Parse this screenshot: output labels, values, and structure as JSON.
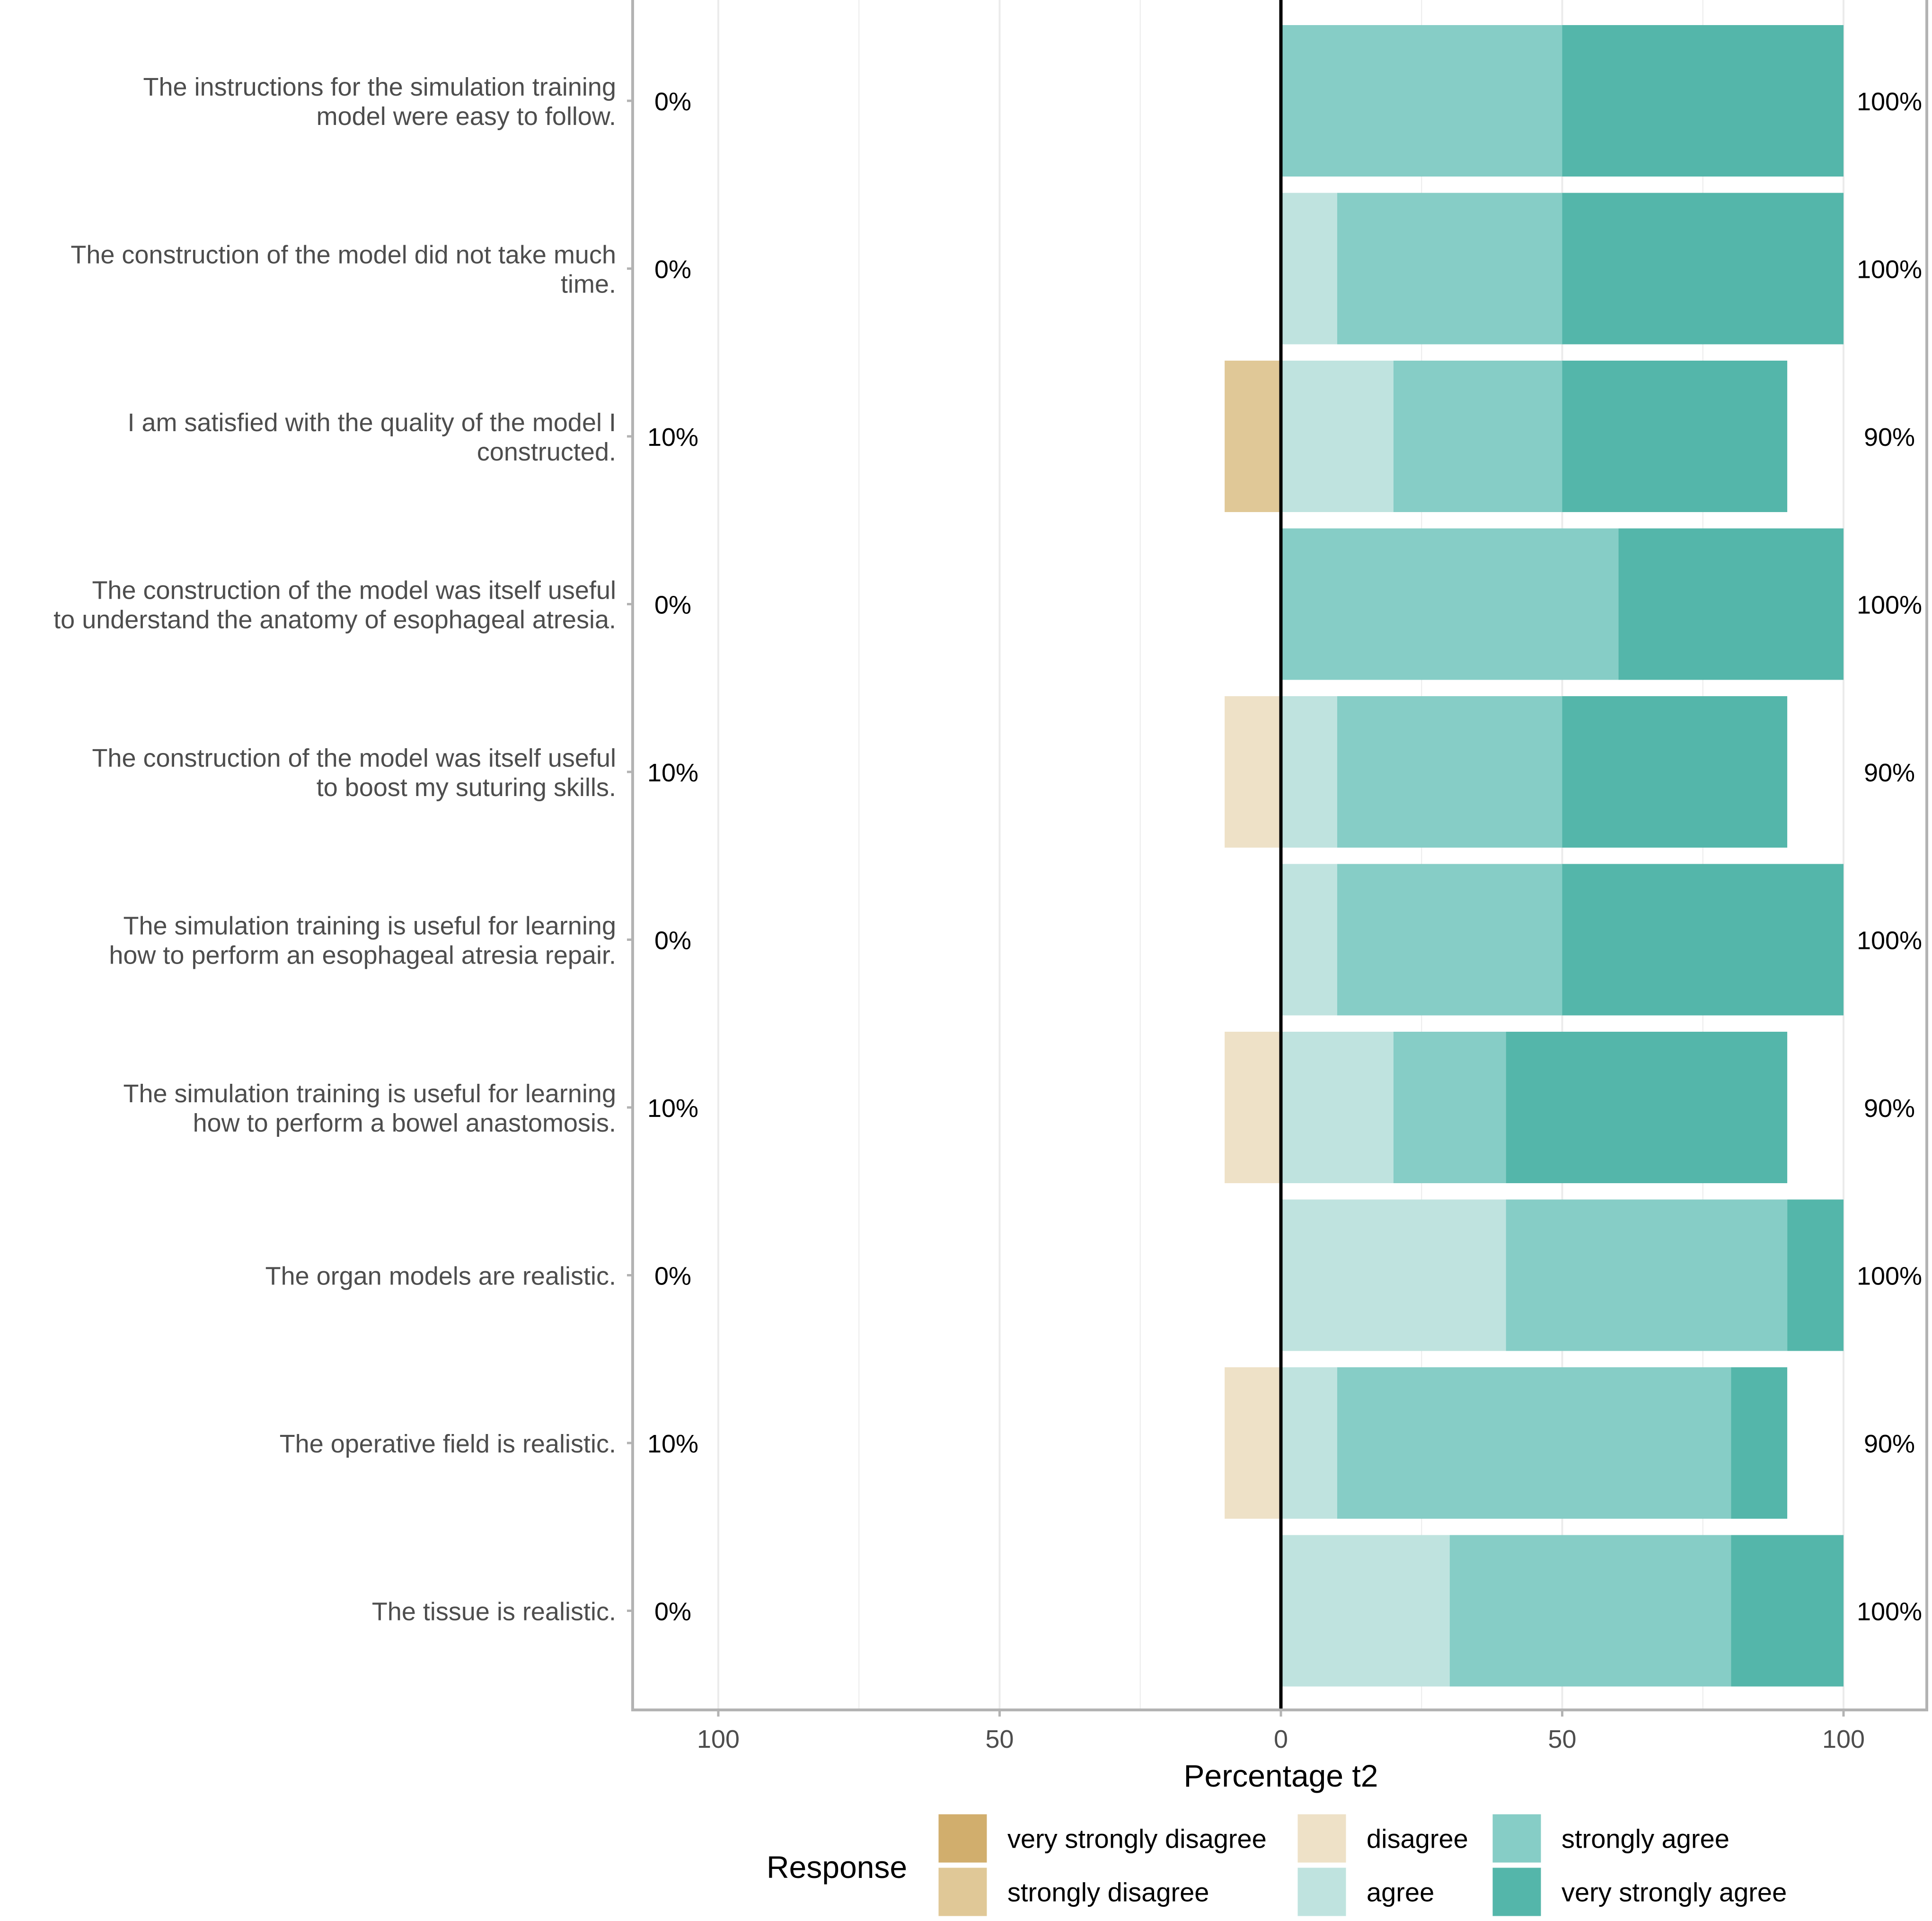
{
  "chart_data": {
    "type": "bar",
    "subtype": "diverging-stacked-likert",
    "xlabel": "Percentage t2",
    "xlim": [
      -115,
      115
    ],
    "x_ticks": [
      -100,
      -50,
      0,
      50,
      100
    ],
    "x_tick_labels": [
      "100",
      "50",
      "0",
      "50",
      "100"
    ],
    "grid": true,
    "legend": {
      "title": "Response",
      "position": "bottom",
      "entries": [
        {
          "key": "very_strongly_disagree",
          "label": "very strongly disagree",
          "color": "#D1AE6D"
        },
        {
          "key": "strongly_disagree",
          "label": "strongly disagree",
          "color": "#E0C897"
        },
        {
          "key": "disagree",
          "label": "disagree",
          "color": "#EEE1C7"
        },
        {
          "key": "agree",
          "label": "agree",
          "color": "#BFE3DF"
        },
        {
          "key": "strongly_agree",
          "label": "strongly agree",
          "color": "#86CDC6"
        },
        {
          "key": "very_strongly_agree",
          "label": "very strongly agree",
          "color": "#54B6AA"
        }
      ]
    },
    "items": [
      {
        "label_lines": [
          "The instructions for the simulation training",
          "model were easy to follow."
        ],
        "very_strongly_disagree": 0,
        "strongly_disagree": 0,
        "disagree": 0,
        "agree": 0,
        "strongly_agree": 50,
        "very_strongly_agree": 50,
        "left_pct": "0%",
        "right_pct": "100%"
      },
      {
        "label_lines": [
          "The construction of the model did not take much",
          "time."
        ],
        "very_strongly_disagree": 0,
        "strongly_disagree": 0,
        "disagree": 0,
        "agree": 10,
        "strongly_agree": 40,
        "very_strongly_agree": 50,
        "left_pct": "0%",
        "right_pct": "100%"
      },
      {
        "label_lines": [
          "I am satisfied with the quality of the model I",
          "constructed."
        ],
        "very_strongly_disagree": 0,
        "strongly_disagree": 10,
        "disagree": 0,
        "agree": 20,
        "strongly_agree": 30,
        "very_strongly_agree": 40,
        "left_pct": "10%",
        "right_pct": "90%"
      },
      {
        "label_lines": [
          "The construction of the model was itself useful",
          "to understand the anatomy of esophageal atresia."
        ],
        "very_strongly_disagree": 0,
        "strongly_disagree": 0,
        "disagree": 0,
        "agree": 0,
        "strongly_agree": 60,
        "very_strongly_agree": 40,
        "left_pct": "0%",
        "right_pct": "100%"
      },
      {
        "label_lines": [
          "The construction of the model was itself useful",
          "to boost my suturing skills."
        ],
        "very_strongly_disagree": 0,
        "strongly_disagree": 0,
        "disagree": 10,
        "agree": 10,
        "strongly_agree": 40,
        "very_strongly_agree": 40,
        "left_pct": "10%",
        "right_pct": "90%"
      },
      {
        "label_lines": [
          "The simulation training is useful for learning",
          "how to perform an esophageal atresia repair."
        ],
        "very_strongly_disagree": 0,
        "strongly_disagree": 0,
        "disagree": 0,
        "agree": 10,
        "strongly_agree": 40,
        "very_strongly_agree": 50,
        "left_pct": "0%",
        "right_pct": "100%"
      },
      {
        "label_lines": [
          "The simulation training is useful for learning",
          "how to perform a bowel anastomosis."
        ],
        "very_strongly_disagree": 0,
        "strongly_disagree": 0,
        "disagree": 10,
        "agree": 20,
        "strongly_agree": 20,
        "very_strongly_agree": 50,
        "left_pct": "10%",
        "right_pct": "90%"
      },
      {
        "label_lines": [
          "The organ models are realistic."
        ],
        "very_strongly_disagree": 0,
        "strongly_disagree": 0,
        "disagree": 0,
        "agree": 40,
        "strongly_agree": 50,
        "very_strongly_agree": 10,
        "left_pct": "0%",
        "right_pct": "100%"
      },
      {
        "label_lines": [
          "The operative field is realistic."
        ],
        "very_strongly_disagree": 0,
        "strongly_disagree": 0,
        "disagree": 10,
        "agree": 10,
        "strongly_agree": 70,
        "very_strongly_agree": 10,
        "left_pct": "10%",
        "right_pct": "90%"
      },
      {
        "label_lines": [
          "The tissue is realistic."
        ],
        "very_strongly_disagree": 0,
        "strongly_disagree": 0,
        "disagree": 0,
        "agree": 30,
        "strongly_agree": 50,
        "very_strongly_agree": 20,
        "left_pct": "0%",
        "right_pct": "100%"
      }
    ]
  }
}
